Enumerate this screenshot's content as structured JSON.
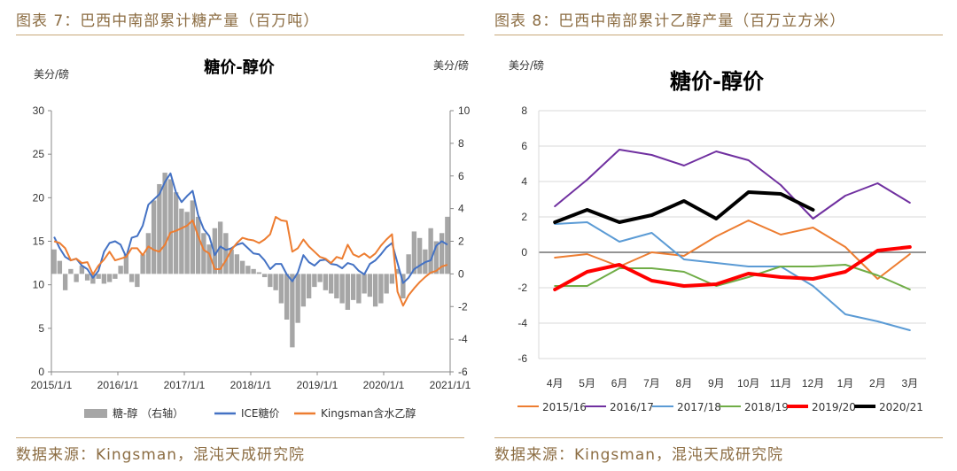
{
  "panels": {
    "left": {
      "figure_title": "图表 7：巴西中南部累计糖产量（百万吨）",
      "source": "数据来源：Kingsman，混沌天成研究院"
    },
    "right": {
      "figure_title": "图表 8：巴西中南部累计乙醇产量（百万立方米）",
      "source": "数据来源：Kingsman，混沌天成研究院"
    }
  },
  "chart_data": [
    {
      "type": "line",
      "title": "糖价-醇价",
      "ylabel_left": "美分/磅",
      "ylabel_right": "美分/磅",
      "ylim_left": [
        0,
        30
      ],
      "yticks_left": [
        0,
        5,
        10,
        15,
        20,
        25,
        30
      ],
      "ylim_right": [
        -6,
        10
      ],
      "yticks_right": [
        -6,
        -4,
        -2,
        0,
        2,
        4,
        6,
        8,
        10
      ],
      "xlim": [
        "2015/1/1",
        "2021/1/1"
      ],
      "xticks": [
        "2015/1/1",
        "2016/1/1",
        "2017/1/1",
        "2018/1/1",
        "2019/1/1",
        "2020/1/1",
        "2021/1/1"
      ],
      "grid": false,
      "legend_position": "bottom",
      "series": [
        {
          "name": "糖-醇 （右轴）",
          "type": "bar",
          "axis": "right",
          "color": "#a6a6a6",
          "x": [
            "2015/1",
            "2015/2",
            "2015/3",
            "2015/4",
            "2015/5",
            "2015/6",
            "2015/7",
            "2015/8",
            "2015/9",
            "2015/10",
            "2015/11",
            "2015/12",
            "2016/1",
            "2016/2",
            "2016/3",
            "2016/4",
            "2016/5",
            "2016/6",
            "2016/7",
            "2016/8",
            "2016/9",
            "2016/10",
            "2016/11",
            "2016/12",
            "2017/1",
            "2017/2",
            "2017/3",
            "2017/4",
            "2017/5",
            "2017/6",
            "2017/7",
            "2017/8",
            "2017/9",
            "2017/10",
            "2017/11",
            "2017/12",
            "2018/1",
            "2018/2",
            "2018/3",
            "2018/4",
            "2018/5",
            "2018/6",
            "2018/7",
            "2018/8",
            "2018/9",
            "2018/10",
            "2018/11",
            "2018/12",
            "2019/1",
            "2019/2",
            "2019/3",
            "2019/4",
            "2019/5",
            "2019/6",
            "2019/7",
            "2019/8",
            "2019/9",
            "2019/10",
            "2019/11",
            "2019/12",
            "2020/1",
            "2020/2",
            "2020/3",
            "2020/4",
            "2020/5",
            "2020/6",
            "2020/7",
            "2020/8",
            "2020/9",
            "2020/10",
            "2020/11",
            "2020/12"
          ],
          "values": [
            1.5,
            0.8,
            -1,
            0.3,
            -0.5,
            0.5,
            -0.4,
            -0.6,
            -0.3,
            -0.6,
            -0.5,
            -0.3,
            0.5,
            1.2,
            -0.5,
            -0.8,
            1.2,
            2.5,
            4.5,
            5.5,
            6.2,
            5.8,
            5,
            4,
            3.8,
            4.5,
            3.5,
            2.5,
            1.8,
            2.8,
            3.2,
            2.5,
            1.5,
            1.2,
            0.8,
            0.5,
            0.3,
            0.1,
            -0.2,
            -0.8,
            -1,
            -1.8,
            -2.8,
            -4.5,
            -3,
            -2,
            -1.5,
            -0.8,
            -0.5,
            -1,
            -1.2,
            -1.5,
            -1.8,
            -2.2,
            -1.6,
            -1.8,
            -1.2,
            -1.4,
            -2,
            -1.8,
            -1.2,
            -0.6,
            0.3,
            -1.5,
            1.2,
            2.6,
            2.2,
            1.5,
            2.8,
            2,
            2.5,
            3.5
          ]
        },
        {
          "name": "ICE糖价",
          "type": "line",
          "axis": "left",
          "color": "#4472c4",
          "x": [
            "2015/1",
            "2015/2",
            "2015/3",
            "2015/4",
            "2015/5",
            "2015/6",
            "2015/7",
            "2015/8",
            "2015/9",
            "2015/10",
            "2015/11",
            "2015/12",
            "2016/1",
            "2016/2",
            "2016/3",
            "2016/4",
            "2016/5",
            "2016/6",
            "2016/7",
            "2016/8",
            "2016/9",
            "2016/10",
            "2016/11",
            "2016/12",
            "2017/1",
            "2017/2",
            "2017/3",
            "2017/4",
            "2017/5",
            "2017/6",
            "2017/7",
            "2017/8",
            "2017/9",
            "2017/10",
            "2017/11",
            "2017/12",
            "2018/1",
            "2018/2",
            "2018/3",
            "2018/4",
            "2018/5",
            "2018/6",
            "2018/7",
            "2018/8",
            "2018/9",
            "2018/10",
            "2018/11",
            "2018/12",
            "2019/1",
            "2019/2",
            "2019/3",
            "2019/4",
            "2019/5",
            "2019/6",
            "2019/7",
            "2019/8",
            "2019/9",
            "2019/10",
            "2019/11",
            "2019/12",
            "2020/1",
            "2020/2",
            "2020/3",
            "2020/4",
            "2020/5",
            "2020/6",
            "2020/7",
            "2020/8",
            "2020/9",
            "2020/10",
            "2020/11",
            "2020/12"
          ],
          "values": [
            15.5,
            14.2,
            13.2,
            12.8,
            13,
            12.2,
            11.8,
            10.8,
            11.6,
            13.8,
            14.8,
            15,
            14.6,
            13.2,
            15.4,
            15.6,
            16.8,
            19.2,
            19.8,
            20.4,
            21.8,
            22.8,
            20.6,
            19.5,
            20.2,
            20.8,
            18,
            16.4,
            15.6,
            13.4,
            14.4,
            14,
            14.2,
            14.6,
            14.8,
            14.2,
            13.6,
            13.5,
            12.8,
            11.8,
            12.4,
            12.4,
            11.2,
            10.4,
            11.4,
            13.4,
            12.6,
            12.2,
            12.8,
            12.9,
            12.4,
            12.3,
            11.9,
            12.5,
            12.3,
            11.6,
            11.2,
            12.4,
            12.8,
            13.5,
            14.3,
            14.8,
            12.5,
            10.2,
            10.8,
            11.8,
            12.2,
            12.6,
            12.8,
            14.5,
            15,
            14.6
          ]
        },
        {
          "name": "Kingsman含水乙醇",
          "type": "line",
          "axis": "left",
          "color": "#ed7d31",
          "x": [
            "2015/1",
            "2015/2",
            "2015/3",
            "2015/4",
            "2015/5",
            "2015/6",
            "2015/7",
            "2015/8",
            "2015/9",
            "2015/10",
            "2015/11",
            "2015/12",
            "2016/1",
            "2016/2",
            "2016/3",
            "2016/4",
            "2016/5",
            "2016/6",
            "2016/7",
            "2016/8",
            "2016/9",
            "2016/10",
            "2016/11",
            "2016/12",
            "2017/1",
            "2017/2",
            "2017/3",
            "2017/4",
            "2017/5",
            "2017/6",
            "2017/7",
            "2017/8",
            "2017/9",
            "2017/10",
            "2017/11",
            "2017/12",
            "2018/1",
            "2018/2",
            "2018/3",
            "2018/4",
            "2018/5",
            "2018/6",
            "2018/7",
            "2018/8",
            "2018/9",
            "2018/10",
            "2018/11",
            "2018/12",
            "2019/1",
            "2019/2",
            "2019/3",
            "2019/4",
            "2019/5",
            "2019/6",
            "2019/7",
            "2019/8",
            "2019/9",
            "2019/10",
            "2019/11",
            "2019/12",
            "2020/1",
            "2020/2",
            "2020/3",
            "2020/4",
            "2020/5",
            "2020/6",
            "2020/7",
            "2020/8",
            "2020/9",
            "2020/10",
            "2020/11",
            "2020/12"
          ],
          "values": [
            15,
            14.8,
            14.2,
            12.8,
            13,
            12.5,
            12.6,
            11.2,
            12.2,
            12.9,
            13.8,
            12.8,
            13,
            13.2,
            14.2,
            14.2,
            13.4,
            14.4,
            14,
            13.8,
            14.6,
            16,
            16.2,
            16.5,
            16.8,
            17.4,
            15.6,
            14,
            13.6,
            11.8,
            11.8,
            12.8,
            14,
            14.8,
            15.4,
            15.2,
            15.1,
            14.8,
            15.2,
            15.8,
            17.8,
            17.4,
            17.3,
            13.8,
            14.2,
            15.2,
            14.4,
            13.8,
            13.2,
            13,
            12.5,
            13.2,
            13,
            14.6,
            13.5,
            13.2,
            13.6,
            13.1,
            13.6,
            14.5,
            15.2,
            15.8,
            9.2,
            7.6,
            8.8,
            9.6,
            10.3,
            10.9,
            11.4,
            11.6,
            12.1,
            12.3
          ]
        }
      ]
    },
    {
      "type": "line",
      "title": "糖价-醇价",
      "ylabel": "美分/磅",
      "ylim": [
        -6,
        8
      ],
      "yticks": [
        -6,
        -4,
        -2,
        0,
        2,
        4,
        6,
        8
      ],
      "categories": [
        "4月",
        "5月",
        "6月",
        "7月",
        "8月",
        "9月",
        "10月",
        "11月",
        "12月",
        "1月",
        "2月",
        "3月"
      ],
      "grid": true,
      "legend_position": "bottom",
      "series": [
        {
          "name": "2015/16",
          "color": "#ed7d31",
          "width": 2,
          "values": [
            -0.3,
            -0.1,
            -0.8,
            0.0,
            -0.2,
            0.9,
            1.8,
            1.0,
            1.4,
            0.3,
            -1.5,
            -0.1
          ]
        },
        {
          "name": "2016/17",
          "color": "#7030a0",
          "width": 2,
          "values": [
            2.6,
            4.1,
            5.8,
            5.5,
            4.9,
            5.7,
            5.2,
            3.8,
            1.9,
            3.2,
            3.9,
            2.8
          ]
        },
        {
          "name": "2017/18",
          "color": "#5b9bd5",
          "width": 2,
          "values": [
            1.6,
            1.7,
            0.6,
            1.1,
            -0.4,
            -0.6,
            -0.8,
            -0.8,
            -1.9,
            -3.5,
            -3.9,
            -4.4
          ]
        },
        {
          "name": "2018/19",
          "color": "#70ad47",
          "width": 2,
          "values": [
            -1.9,
            -1.9,
            -0.9,
            -0.9,
            -1.1,
            -1.9,
            -1.4,
            -0.8,
            -0.8,
            -0.7,
            -1.3,
            -2.1
          ]
        },
        {
          "name": "2019/20",
          "color": "#ff0000",
          "width": 4,
          "values": [
            -2.1,
            -1.1,
            -0.7,
            -1.6,
            -1.9,
            -1.8,
            -1.2,
            -1.4,
            -1.5,
            -1.1,
            0.1,
            0.3
          ]
        },
        {
          "name": "2020/21",
          "color": "#000000",
          "width": 4,
          "values": [
            1.7,
            2.4,
            1.7,
            2.1,
            2.9,
            1.9,
            3.4,
            3.3,
            2.4,
            null,
            null,
            null
          ]
        }
      ]
    }
  ]
}
